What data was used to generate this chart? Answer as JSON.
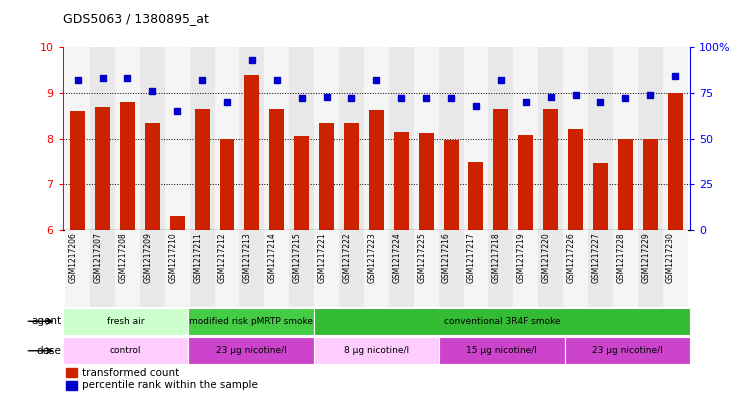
{
  "title": "GDS5063 / 1380895_at",
  "samples": [
    "GSM1217206",
    "GSM1217207",
    "GSM1217208",
    "GSM1217209",
    "GSM1217210",
    "GSM1217211",
    "GSM1217212",
    "GSM1217213",
    "GSM1217214",
    "GSM1217215",
    "GSM1217221",
    "GSM1217222",
    "GSM1217223",
    "GSM1217224",
    "GSM1217225",
    "GSM1217216",
    "GSM1217217",
    "GSM1217218",
    "GSM1217219",
    "GSM1217220",
    "GSM1217226",
    "GSM1217227",
    "GSM1217228",
    "GSM1217229",
    "GSM1217230"
  ],
  "bar_values": [
    8.6,
    8.7,
    8.8,
    8.35,
    6.3,
    8.65,
    8.0,
    9.4,
    8.65,
    8.05,
    8.35,
    8.35,
    8.62,
    8.15,
    8.12,
    7.97,
    7.48,
    8.65,
    8.08,
    8.65,
    8.2,
    7.47,
    7.98,
    8.0,
    9.0
  ],
  "percentile_values": [
    82,
    83,
    83,
    76,
    65,
    82,
    70,
    93,
    82,
    72,
    73,
    72,
    82,
    72,
    72,
    72,
    68,
    82,
    70,
    73,
    74,
    70,
    72,
    74,
    84
  ],
  "bar_color": "#cc2200",
  "dot_color": "#0000cc",
  "ylim_left": [
    6,
    10
  ],
  "ylim_right": [
    0,
    100
  ],
  "yticks_left": [
    6,
    7,
    8,
    9,
    10
  ],
  "yticks_right": [
    0,
    25,
    50,
    75,
    100
  ],
  "dotted_lines": [
    7,
    8,
    9
  ],
  "agent_groups": [
    {
      "label": "fresh air",
      "start": 0,
      "end": 5,
      "color": "#ccffcc"
    },
    {
      "label": "modified risk pMRTP smoke",
      "start": 5,
      "end": 10,
      "color": "#44cc44"
    },
    {
      "label": "conventional 3R4F smoke",
      "start": 10,
      "end": 25,
      "color": "#33bb33"
    }
  ],
  "dose_groups": [
    {
      "label": "control",
      "start": 0,
      "end": 5,
      "color": "#ffccff"
    },
    {
      "label": "23 μg nicotine/l",
      "start": 5,
      "end": 10,
      "color": "#cc44cc"
    },
    {
      "label": "8 μg nicotine/l",
      "start": 10,
      "end": 15,
      "color": "#ffccff"
    },
    {
      "label": "15 μg nicotine/l",
      "start": 15,
      "end": 20,
      "color": "#cc44cc"
    },
    {
      "label": "23 μg nicotine/l",
      "start": 20,
      "end": 25,
      "color": "#cc44cc"
    }
  ],
  "agent_label": "agent",
  "dose_label": "dose",
  "legend_bar": "transformed count",
  "legend_dot": "percentile rank within the sample",
  "background_color": "#ffffff"
}
